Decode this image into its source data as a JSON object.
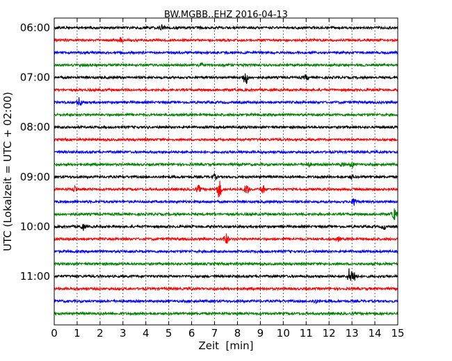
{
  "chart_data": {
    "type": "line",
    "title": "BW.MGBB..EHZ 2016-04-13",
    "xlabel": "Zeit  [min]",
    "ylabel": "UTC (Lokalzeit = UTC + 02:00)",
    "xlim": [
      0,
      15
    ],
    "x_ticks": [
      0,
      1,
      2,
      3,
      4,
      5,
      6,
      7,
      8,
      9,
      10,
      11,
      12,
      13,
      14,
      15
    ],
    "x_tick_labels": [
      "0",
      "1",
      "2",
      "3",
      "4",
      "5",
      "6",
      "7",
      "8",
      "9",
      "10",
      "11",
      "12",
      "13",
      "14",
      "15"
    ],
    "y_tick_labels": [
      "06:00",
      "07:00",
      "08:00",
      "09:00",
      "10:00",
      "11:00"
    ],
    "grid": "vertical dotted",
    "trace_colors": [
      "#000000",
      "#ff0000",
      "#0000ff",
      "#008000"
    ],
    "traces": [
      {
        "start": "06:00",
        "events": [
          {
            "t": 4.7,
            "a": 1.2
          }
        ]
      },
      {
        "start": "06:15",
        "events": [
          {
            "t": 2.9,
            "a": 1.0
          }
        ]
      },
      {
        "start": "06:30",
        "events": []
      },
      {
        "start": "06:45",
        "events": [
          {
            "t": 6.4,
            "a": 0.8
          }
        ]
      },
      {
        "start": "07:00",
        "events": [
          {
            "t": 8.35,
            "a": 3.5
          },
          {
            "t": 11.0,
            "a": 1.0
          }
        ]
      },
      {
        "start": "07:15",
        "events": []
      },
      {
        "start": "07:30",
        "events": [
          {
            "t": 1.1,
            "a": 2.0
          }
        ]
      },
      {
        "start": "07:45",
        "events": []
      },
      {
        "start": "08:00",
        "events": []
      },
      {
        "start": "08:15",
        "events": []
      },
      {
        "start": "08:30",
        "events": []
      },
      {
        "start": "08:45",
        "events": [
          {
            "t": 11.1,
            "a": 0.8
          },
          {
            "t": 12.6,
            "a": 0.9
          },
          {
            "t": 13.0,
            "a": 1.0
          }
        ]
      },
      {
        "start": "09:00",
        "events": [
          {
            "t": 7.0,
            "a": 1.0
          },
          {
            "t": 13.0,
            "a": 0.8
          }
        ]
      },
      {
        "start": "09:15",
        "events": [
          {
            "t": 0.9,
            "a": 1.3
          },
          {
            "t": 6.3,
            "a": 1.5
          },
          {
            "t": 7.2,
            "a": 4.0
          },
          {
            "t": 8.4,
            "a": 2.3
          },
          {
            "t": 9.1,
            "a": 2.0
          }
        ]
      },
      {
        "start": "09:30",
        "events": [
          {
            "t": 13.1,
            "a": 1.8
          }
        ]
      },
      {
        "start": "09:45",
        "events": [
          {
            "t": 14.85,
            "a": 2.5
          }
        ]
      },
      {
        "start": "10:00",
        "events": [
          {
            "t": 1.25,
            "a": 1.5
          },
          {
            "t": 14.4,
            "a": 1.0
          }
        ]
      },
      {
        "start": "10:15",
        "events": [
          {
            "t": 7.5,
            "a": 2.5
          },
          {
            "t": 12.4,
            "a": 0.9
          }
        ]
      },
      {
        "start": "10:30",
        "events": []
      },
      {
        "start": "10:45",
        "events": []
      },
      {
        "start": "11:00",
        "events": [
          {
            "t": 12.9,
            "a": 3.5
          },
          {
            "t": 13.1,
            "a": 2.8
          }
        ]
      },
      {
        "start": "11:15",
        "events": []
      },
      {
        "start": "11:30",
        "events": [
          {
            "t": 11.4,
            "a": 0.8
          }
        ]
      },
      {
        "start": "11:45",
        "events": []
      }
    ]
  }
}
